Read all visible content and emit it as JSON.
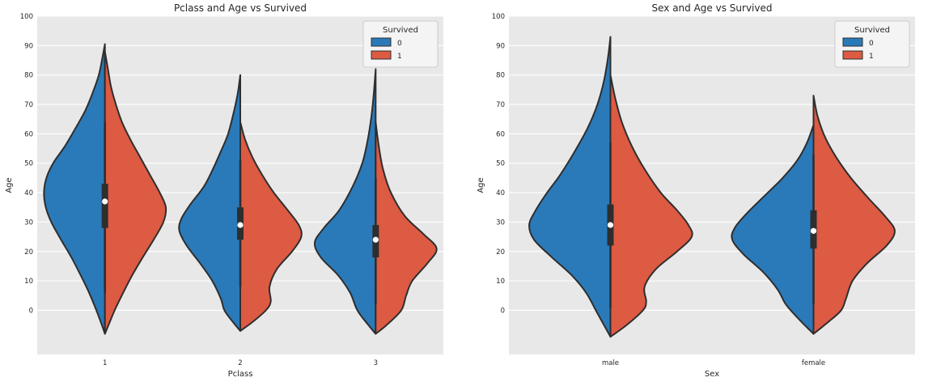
{
  "page": {
    "background": "#ffffff"
  },
  "chart_data": [
    {
      "type": "violin",
      "title": "Pclass and Age vs Survived",
      "xlabel": "Pclass",
      "ylabel": "Age",
      "ylim": [
        -15,
        100
      ],
      "yticks": [
        0,
        10,
        20,
        30,
        40,
        50,
        60,
        70,
        80,
        90,
        100
      ],
      "grid": true,
      "plot_bg": "#e8e8e8",
      "grid_color": "#ffffff",
      "outline_color": "#2e2e2e",
      "text_color": "#262626",
      "violin_halfwidth_frac": 0.45,
      "legend": {
        "title": "Survived",
        "position": "upper right"
      },
      "hue_levels": [
        {
          "label": "0",
          "color": "#2a7ab9"
        },
        {
          "label": "1",
          "color": "#dd5a43"
        }
      ],
      "categories": [
        "1",
        "2",
        "3"
      ],
      "groups": [
        {
          "category": "1",
          "box": {
            "median": 37,
            "q1": 28,
            "q3": 43,
            "whisker_low": 6,
            "whisker_high": 64
          },
          "halves": [
            {
              "hue": "0",
              "profile": [
                [
                  90.5,
                  0
                ],
                [
                  86,
                  0.04
                ],
                [
                  80,
                  0.1
                ],
                [
                  74,
                  0.2
                ],
                [
                  68,
                  0.32
                ],
                [
                  62,
                  0.48
                ],
                [
                  56,
                  0.65
                ],
                [
                  50,
                  0.85
                ],
                [
                  45,
                  0.96
                ],
                [
                  40,
                  1
                ],
                [
                  35,
                  0.97
                ],
                [
                  30,
                  0.88
                ],
                [
                  24,
                  0.72
                ],
                [
                  18,
                  0.55
                ],
                [
                  12,
                  0.4
                ],
                [
                  6,
                  0.26
                ],
                [
                  0,
                  0.14
                ],
                [
                  -5,
                  0.05
                ],
                [
                  -8,
                  0
                ]
              ]
            },
            {
              "hue": "1",
              "profile": [
                [
                  88,
                  0
                ],
                [
                  82,
                  0.05
                ],
                [
                  76,
                  0.1
                ],
                [
                  70,
                  0.18
                ],
                [
                  64,
                  0.28
                ],
                [
                  58,
                  0.42
                ],
                [
                  52,
                  0.58
                ],
                [
                  46,
                  0.74
                ],
                [
                  40,
                  0.9
                ],
                [
                  35,
                  1
                ],
                [
                  30,
                  0.96
                ],
                [
                  24,
                  0.8
                ],
                [
                  18,
                  0.62
                ],
                [
                  12,
                  0.45
                ],
                [
                  6,
                  0.3
                ],
                [
                  0,
                  0.16
                ],
                [
                  -5,
                  0.06
                ],
                [
                  -8,
                  0
                ]
              ]
            }
          ]
        },
        {
          "category": "2",
          "box": {
            "median": 29,
            "q1": 24,
            "q3": 35,
            "whisker_low": 8,
            "whisker_high": 51
          },
          "halves": [
            {
              "hue": "0",
              "profile": [
                [
                  80,
                  0
                ],
                [
                  74,
                  0.04
                ],
                [
                  68,
                  0.1
                ],
                [
                  60,
                  0.2
                ],
                [
                  54,
                  0.32
                ],
                [
                  48,
                  0.45
                ],
                [
                  42,
                  0.6
                ],
                [
                  36,
                  0.82
                ],
                [
                  31,
                  0.97
                ],
                [
                  27,
                  1
                ],
                [
                  22,
                  0.88
                ],
                [
                  16,
                  0.66
                ],
                [
                  10,
                  0.46
                ],
                [
                  4,
                  0.32
                ],
                [
                  0,
                  0.26
                ],
                [
                  -4,
                  0.12
                ],
                [
                  -7,
                  0
                ]
              ]
            },
            {
              "hue": "1",
              "profile": [
                [
                  64,
                  0
                ],
                [
                  58,
                  0.08
                ],
                [
                  52,
                  0.2
                ],
                [
                  46,
                  0.36
                ],
                [
                  40,
                  0.55
                ],
                [
                  34,
                  0.78
                ],
                [
                  29,
                  0.96
                ],
                [
                  25,
                  1
                ],
                [
                  20,
                  0.85
                ],
                [
                  14,
                  0.6
                ],
                [
                  8,
                  0.48
                ],
                [
                  3,
                  0.5
                ],
                [
                  0,
                  0.42
                ],
                [
                  -4,
                  0.2
                ],
                [
                  -7,
                  0
                ]
              ]
            }
          ]
        },
        {
          "category": "3",
          "box": {
            "median": 24,
            "q1": 18,
            "q3": 29,
            "whisker_low": 2,
            "whisker_high": 45
          },
          "halves": [
            {
              "hue": "0",
              "profile": [
                [
                  82,
                  0
                ],
                [
                  74,
                  0.03
                ],
                [
                  66,
                  0.07
                ],
                [
                  58,
                  0.13
                ],
                [
                  50,
                  0.22
                ],
                [
                  42,
                  0.38
                ],
                [
                  34,
                  0.6
                ],
                [
                  28,
                  0.85
                ],
                [
                  23,
                  1
                ],
                [
                  18,
                  0.9
                ],
                [
                  12,
                  0.62
                ],
                [
                  6,
                  0.42
                ],
                [
                  0,
                  0.3
                ],
                [
                  -5,
                  0.12
                ],
                [
                  -8,
                  0
                ]
              ]
            },
            {
              "hue": "1",
              "profile": [
                [
                  64,
                  0
                ],
                [
                  56,
                  0.05
                ],
                [
                  48,
                  0.12
                ],
                [
                  40,
                  0.25
                ],
                [
                  32,
                  0.48
                ],
                [
                  26,
                  0.78
                ],
                [
                  21,
                  1
                ],
                [
                  16,
                  0.85
                ],
                [
                  10,
                  0.6
                ],
                [
                  5,
                  0.5
                ],
                [
                  0,
                  0.42
                ],
                [
                  -5,
                  0.18
                ],
                [
                  -8,
                  0
                ]
              ]
            }
          ]
        }
      ]
    },
    {
      "type": "violin",
      "title": "Sex and Age vs Survived",
      "xlabel": "Sex",
      "ylabel": "Age",
      "ylim": [
        -15,
        100
      ],
      "yticks": [
        0,
        10,
        20,
        30,
        40,
        50,
        60,
        70,
        80,
        90,
        100
      ],
      "grid": true,
      "plot_bg": "#e8e8e8",
      "grid_color": "#ffffff",
      "outline_color": "#2e2e2e",
      "text_color": "#262626",
      "violin_halfwidth_frac": 0.4,
      "legend": {
        "title": "Survived",
        "position": "upper right"
      },
      "hue_levels": [
        {
          "label": "0",
          "color": "#2a7ab9"
        },
        {
          "label": "1",
          "color": "#dd5a43"
        }
      ],
      "categories": [
        "male",
        "female"
      ],
      "groups": [
        {
          "category": "male",
          "box": {
            "median": 29,
            "q1": 22,
            "q3": 36,
            "whisker_low": 1,
            "whisker_high": 57
          },
          "halves": [
            {
              "hue": "0",
              "profile": [
                [
                  93,
                  0
                ],
                [
                  86,
                  0.03
                ],
                [
                  78,
                  0.08
                ],
                [
                  70,
                  0.16
                ],
                [
                  62,
                  0.28
                ],
                [
                  54,
                  0.44
                ],
                [
                  46,
                  0.62
                ],
                [
                  40,
                  0.78
                ],
                [
                  34,
                  0.92
                ],
                [
                  29,
                  1
                ],
                [
                  24,
                  0.94
                ],
                [
                  18,
                  0.72
                ],
                [
                  12,
                  0.48
                ],
                [
                  6,
                  0.3
                ],
                [
                  0,
                  0.18
                ],
                [
                  -5,
                  0.08
                ],
                [
                  -9,
                  0
                ]
              ]
            },
            {
              "hue": "1",
              "profile": [
                [
                  80,
                  0
                ],
                [
                  72,
                  0.06
                ],
                [
                  64,
                  0.14
                ],
                [
                  56,
                  0.26
                ],
                [
                  48,
                  0.42
                ],
                [
                  40,
                  0.62
                ],
                [
                  34,
                  0.82
                ],
                [
                  29,
                  0.96
                ],
                [
                  25,
                  1
                ],
                [
                  20,
                  0.82
                ],
                [
                  14,
                  0.56
                ],
                [
                  8,
                  0.42
                ],
                [
                  3,
                  0.44
                ],
                [
                  0,
                  0.4
                ],
                [
                  -5,
                  0.2
                ],
                [
                  -9,
                  0
                ]
              ]
            }
          ]
        },
        {
          "category": "female",
          "box": {
            "median": 27,
            "q1": 21,
            "q3": 34,
            "whisker_low": 2,
            "whisker_high": 53
          },
          "halves": [
            {
              "hue": "0",
              "profile": [
                [
                  63,
                  0
                ],
                [
                  57,
                  0.08
                ],
                [
                  51,
                  0.2
                ],
                [
                  45,
                  0.38
                ],
                [
                  39,
                  0.6
                ],
                [
                  33,
                  0.82
                ],
                [
                  28,
                  0.97
                ],
                [
                  24,
                  1
                ],
                [
                  19,
                  0.86
                ],
                [
                  13,
                  0.62
                ],
                [
                  7,
                  0.44
                ],
                [
                  2,
                  0.34
                ],
                [
                  -3,
                  0.18
                ],
                [
                  -8,
                  0
                ]
              ]
            },
            {
              "hue": "1",
              "profile": [
                [
                  73,
                  0
                ],
                [
                  66,
                  0.05
                ],
                [
                  59,
                  0.14
                ],
                [
                  52,
                  0.28
                ],
                [
                  45,
                  0.46
                ],
                [
                  38,
                  0.68
                ],
                [
                  32,
                  0.88
                ],
                [
                  27,
                  1
                ],
                [
                  22,
                  0.9
                ],
                [
                  16,
                  0.66
                ],
                [
                  10,
                  0.48
                ],
                [
                  4,
                  0.4
                ],
                [
                  0,
                  0.34
                ],
                [
                  -4,
                  0.18
                ],
                [
                  -8,
                  0
                ]
              ]
            }
          ]
        }
      ]
    }
  ]
}
